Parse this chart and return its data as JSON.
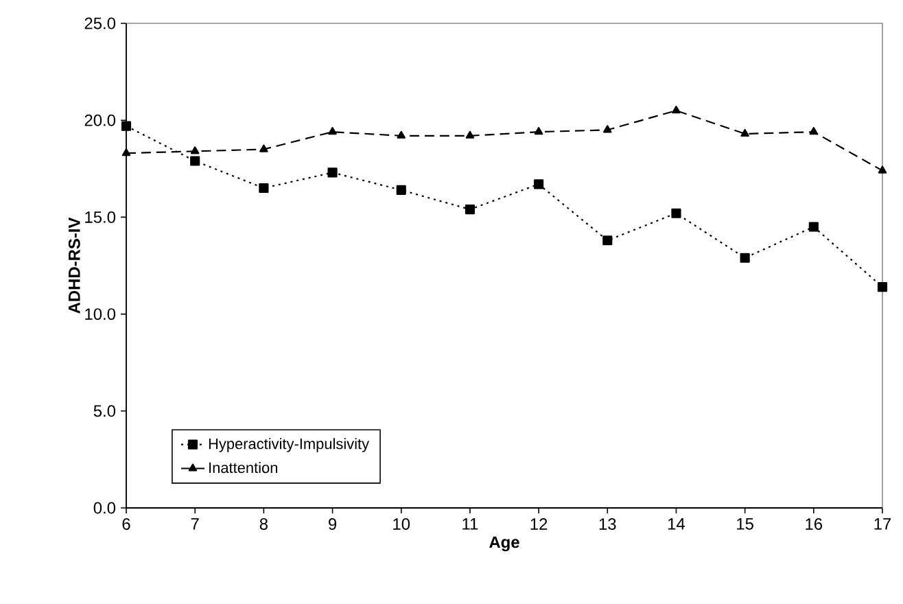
{
  "chart_data": {
    "type": "line",
    "xlabel": "Age",
    "ylabel": "ADHD-RS-IV",
    "x": [
      6,
      7,
      8,
      9,
      10,
      11,
      12,
      13,
      14,
      15,
      16,
      17
    ],
    "series": [
      {
        "name": "Hyperactivity-Impulsivity",
        "color": "#000000",
        "marker": "square",
        "line_style": "dotted",
        "values": [
          19.7,
          17.9,
          16.5,
          17.3,
          16.4,
          15.4,
          16.7,
          13.8,
          15.2,
          12.9,
          14.5,
          11.4
        ]
      },
      {
        "name": "Inattention",
        "color": "#000000",
        "marker": "triangle",
        "line_style": "dashed",
        "values": [
          18.3,
          18.4,
          18.5,
          19.4,
          19.2,
          19.2,
          19.4,
          19.5,
          20.5,
          19.3,
          19.4,
          17.4
        ]
      }
    ],
    "xlim": [
      6,
      17
    ],
    "xticks": [
      6,
      7,
      8,
      9,
      10,
      11,
      12,
      13,
      14,
      15,
      16,
      17
    ],
    "ylim": [
      0,
      25
    ],
    "yticks": [
      {
        "value": 0,
        "label": "0.0"
      },
      {
        "value": 5,
        "label": "5.0"
      },
      {
        "value": 10,
        "label": "10.0"
      },
      {
        "value": 15,
        "label": "15.0"
      },
      {
        "value": 20,
        "label": "20.0"
      },
      {
        "value": 25,
        "label": "25.0"
      }
    ],
    "grid": false,
    "legend": "bottom left"
  }
}
